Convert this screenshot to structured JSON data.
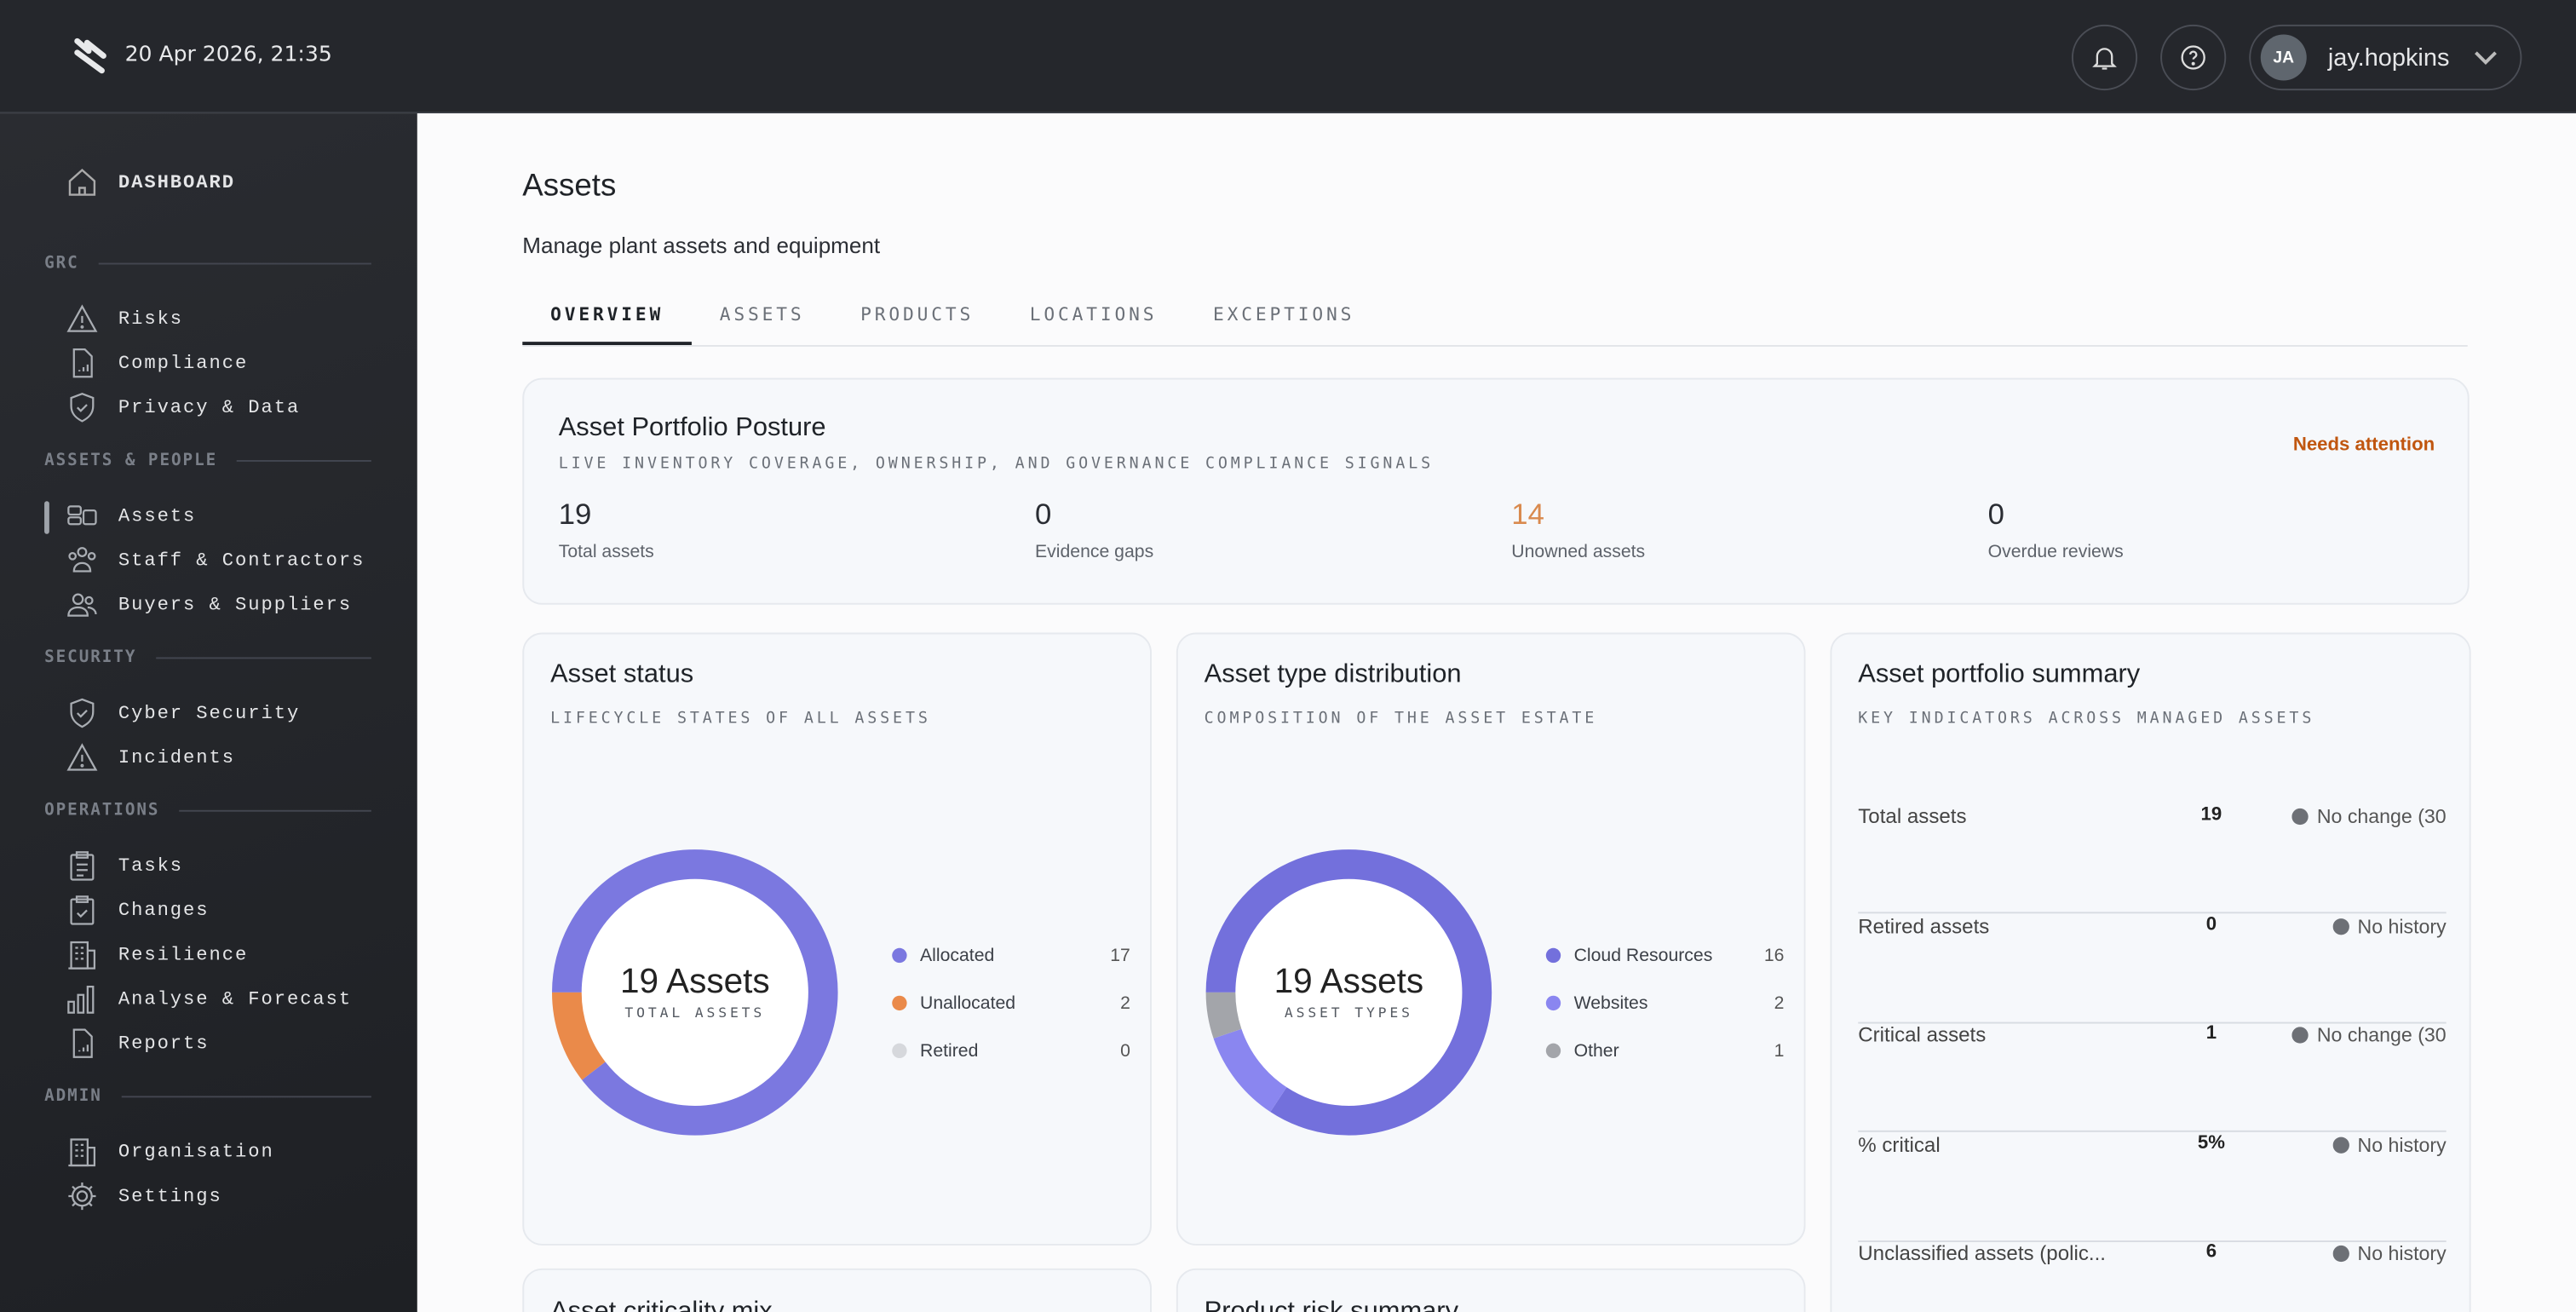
{
  "header": {
    "datetime": "20 Apr 2026, 21:35",
    "user_initials": "JA",
    "username": "jay.hopkins"
  },
  "sidebar": {
    "dashboard": "DASHBOARD",
    "sections": [
      {
        "title": "GRC",
        "items": [
          {
            "label": "Risks",
            "icon": "warning-icon"
          },
          {
            "label": "Compliance",
            "icon": "document-chart-icon"
          },
          {
            "label": "Privacy & Data",
            "icon": "shield-check-icon"
          }
        ]
      },
      {
        "title": "ASSETS & PEOPLE",
        "items": [
          {
            "label": "Assets",
            "icon": "assets-icon",
            "active": true
          },
          {
            "label": "Staff & Contractors",
            "icon": "people-icon"
          },
          {
            "label": "Buyers & Suppliers",
            "icon": "users-icon"
          }
        ]
      },
      {
        "title": "SECURITY",
        "items": [
          {
            "label": "Cyber Security",
            "icon": "shield-check-icon"
          },
          {
            "label": "Incidents",
            "icon": "warning-icon"
          }
        ]
      },
      {
        "title": "OPERATIONS",
        "items": [
          {
            "label": "Tasks",
            "icon": "clipboard-icon"
          },
          {
            "label": "Changes",
            "icon": "clipboard-check-icon"
          },
          {
            "label": "Resilience",
            "icon": "building-icon"
          },
          {
            "label": "Analyse & Forecast",
            "icon": "bar-chart-icon"
          },
          {
            "label": "Reports",
            "icon": "document-chart-icon"
          }
        ]
      },
      {
        "title": "ADMIN",
        "items": [
          {
            "label": "Organisation",
            "icon": "building-icon"
          },
          {
            "label": "Settings",
            "icon": "gear-icon"
          }
        ]
      }
    ]
  },
  "page": {
    "title": "Assets",
    "subtitle": "Manage plant assets and equipment",
    "tabs": [
      "OVERVIEW",
      "ASSETS",
      "PRODUCTS",
      "LOCATIONS",
      "EXCEPTIONS"
    ],
    "active_tab": "OVERVIEW"
  },
  "posture": {
    "title": "Asset Portfolio Posture",
    "subtitle": "LIVE INVENTORY COVERAGE, OWNERSHIP, AND GOVERNANCE COMPLIANCE SIGNALS",
    "badge": "Needs attention",
    "badge_color": "#c0560f",
    "stats": [
      {
        "value": "19",
        "label": "Total assets"
      },
      {
        "value": "0",
        "label": "Evidence gaps"
      },
      {
        "value": "14",
        "label": "Unowned assets",
        "color": "#d98a4e"
      },
      {
        "value": "0",
        "label": "Overdue reviews"
      }
    ]
  },
  "status": {
    "title": "Asset status",
    "subtitle": "LIFECYCLE STATES OF ALL ASSETS",
    "center": "19 Assets",
    "center_sub": "TOTAL ASSETS",
    "chart_data": {
      "type": "pie",
      "categories": [
        "Allocated",
        "Unallocated",
        "Retired"
      ],
      "values": [
        17,
        2,
        0
      ],
      "colors": [
        "#7b78e0",
        "#ea8a4a",
        "#d6d8dc"
      ]
    }
  },
  "types": {
    "title": "Asset type distribution",
    "subtitle": "COMPOSITION OF THE ASSET ESTATE",
    "center": "19 Assets",
    "center_sub": "ASSET TYPES",
    "chart_data": {
      "type": "pie",
      "categories": [
        "Cloud Resources",
        "Websites",
        "Other"
      ],
      "values": [
        16,
        2,
        1
      ],
      "colors": [
        "#7370dc",
        "#8a86f0",
        "#a3a5aa"
      ]
    }
  },
  "summary": {
    "title": "Asset portfolio summary",
    "subtitle": "KEY INDICATORS ACROSS MANAGED ASSETS",
    "rows": [
      {
        "label": "Total assets",
        "value": "19",
        "change": "No change (30"
      },
      {
        "label": "Retired assets",
        "value": "0",
        "change": "No history"
      },
      {
        "label": "Critical assets",
        "value": "1",
        "change": "No change (30"
      },
      {
        "label": "% critical",
        "value": "5%",
        "change": "No history"
      },
      {
        "label": "Unclassified assets (polic...",
        "value": "6",
        "change": "No history"
      }
    ]
  },
  "bottom_cards": [
    "Asset criticality mix",
    "Product risk summary"
  ]
}
